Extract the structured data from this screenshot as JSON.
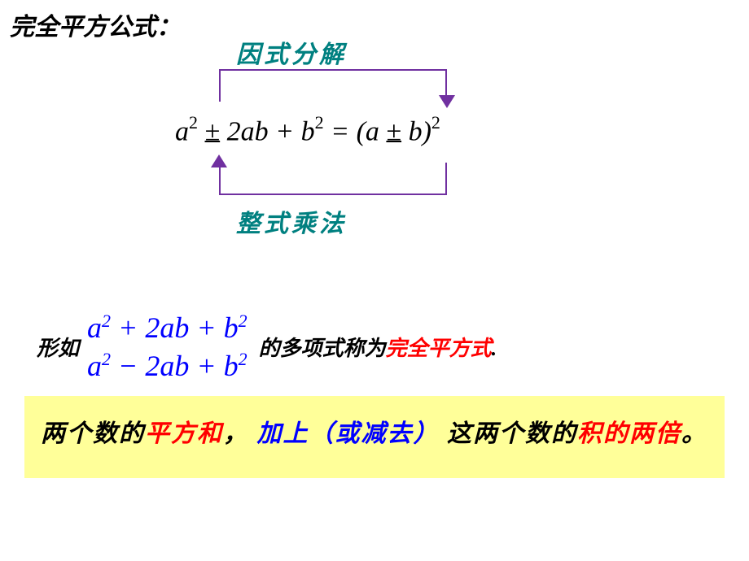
{
  "title": "完全平方公式：",
  "labels": {
    "top": "因式分解",
    "bottom": "整式乘法"
  },
  "equation": {
    "a_sq": "a",
    "b_sq": "b",
    "two_ab": "2ab",
    "plus": "+",
    "pm": "±",
    "eq": "=",
    "lp": "(",
    "rp": ")",
    "sup2": "2"
  },
  "mid": {
    "xingru": "形如",
    "poly1": {
      "a": "a",
      "plus": "+",
      "two_ab": "2ab",
      "b": "b",
      "sup2": "2"
    },
    "poly2": {
      "a": "a",
      "minus": "−",
      "two_ab": "2ab",
      "plus": "+",
      "b": "b",
      "sup2": "2"
    },
    "desc_prefix": "的多项式称为",
    "desc_red": "完全平方式",
    "desc_suffix": "."
  },
  "box": {
    "t1": "两个数的",
    "t2_red": "平方和",
    "t3": "，",
    "t4_blue": "加上（或减去）",
    "t5": "这两个数的",
    "t6_red": "积的两倍",
    "t7": "。"
  },
  "colors": {
    "teal": "#008080",
    "purple": "#7030a0",
    "blue": "#0000ff",
    "red": "#ff0000",
    "yellow_bg": "#ffff99",
    "black": "#000000",
    "white": "#ffffff"
  }
}
